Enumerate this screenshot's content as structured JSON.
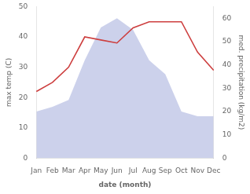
{
  "chart_data": {
    "type": "line",
    "categories": [
      "Jan",
      "Feb",
      "Mar",
      "Apr",
      "May",
      "Jun",
      "Jul",
      "Aug",
      "Sep",
      "Oct",
      "Nov",
      "Dec"
    ],
    "xlabel": "date (month)",
    "ylabel": "max temp (C)",
    "y2label": "med. precipitation (kg/m2)",
    "ylim": [
      0,
      50
    ],
    "yticks": [
      0,
      10,
      20,
      30,
      40,
      50
    ],
    "y2lim": [
      0,
      65
    ],
    "y2ticks": [
      0,
      10,
      20,
      30,
      40,
      50,
      60
    ],
    "grid": false,
    "series": [
      {
        "type": "area",
        "color": "#b0b8e0",
        "axis": "y2",
        "values": [
          20,
          22,
          25,
          42,
          56,
          60,
          55,
          42,
          36,
          20,
          18,
          18
        ]
      },
      {
        "type": "line",
        "color": "#cd3f3f",
        "values": [
          22,
          25,
          30,
          40,
          39,
          38,
          43,
          45,
          45,
          45,
          35,
          29
        ]
      }
    ]
  }
}
